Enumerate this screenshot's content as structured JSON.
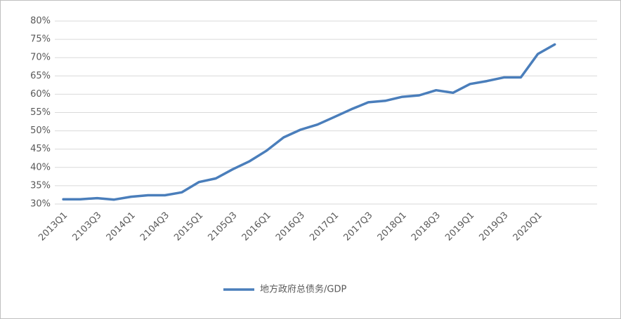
{
  "chart_data": {
    "type": "line",
    "categories": [
      "2013Q1",
      null,
      "2103Q3",
      null,
      "2014Q1",
      null,
      "2104Q3",
      null,
      "2015Q1",
      null,
      "2105Q3",
      null,
      "2016Q1",
      null,
      "2016Q3",
      null,
      "2017Q1",
      null,
      "2017Q3",
      null,
      "2018Q1",
      null,
      "2018Q3",
      null,
      "2019Q1",
      null,
      "2019Q3",
      null,
      "2020Q1",
      null,
      null,
      null
    ],
    "series": [
      {
        "name": "地方政府总债务/GDP",
        "color": "#4a7ebb",
        "values": [
          31.3,
          31.3,
          31.6,
          31.2,
          32.0,
          32.4,
          32.4,
          33.2,
          36.0,
          37.0,
          39.5,
          41.7,
          44.6,
          48.2,
          50.3,
          51.7,
          53.8,
          55.9,
          57.8,
          58.2,
          59.3,
          59.7,
          61.1,
          60.4,
          62.8,
          63.6,
          64.6,
          64.6,
          71.0,
          73.6,
          null,
          null
        ]
      }
    ],
    "ylim": [
      30,
      80
    ],
    "yticks": [
      {
        "value": 30,
        "label": "30%"
      },
      {
        "value": 35,
        "label": "35%"
      },
      {
        "value": 40,
        "label": "40%"
      },
      {
        "value": 45,
        "label": "45%"
      },
      {
        "value": 50,
        "label": "50%"
      },
      {
        "value": 55,
        "label": "55%"
      },
      {
        "value": 60,
        "label": "60%"
      },
      {
        "value": 65,
        "label": "65%"
      },
      {
        "value": 70,
        "label": "70%"
      },
      {
        "value": 75,
        "label": "75%"
      },
      {
        "value": 80,
        "label": "80%"
      }
    ],
    "grid": true,
    "legend": "bottom"
  }
}
